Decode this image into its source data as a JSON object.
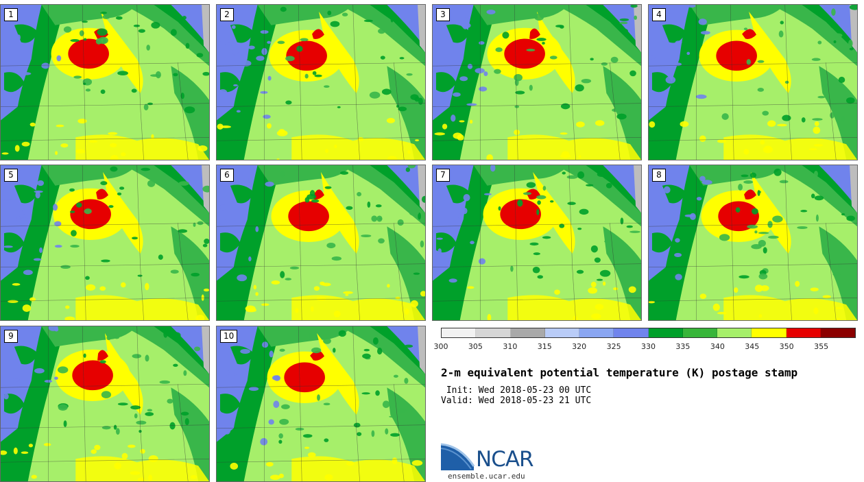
{
  "panels": [
    {
      "label": "1"
    },
    {
      "label": "2"
    },
    {
      "label": "3"
    },
    {
      "label": "4"
    },
    {
      "label": "5"
    },
    {
      "label": "6"
    },
    {
      "label": "7"
    },
    {
      "label": "8"
    },
    {
      "label": "9"
    },
    {
      "label": "10"
    }
  ],
  "colorbar": {
    "ticks": [
      "300",
      "305",
      "310",
      "315",
      "320",
      "325",
      "330",
      "335",
      "340",
      "345",
      "350",
      "355"
    ],
    "colors": [
      "#f2f2f2",
      "#d6d6d6",
      "#a9a9a9",
      "#b9ccf7",
      "#8aa6f2",
      "#7084ec",
      "#00a02a",
      "#38b53a",
      "#a6ef6a",
      "#ffff00",
      "#e60000",
      "#8b0000"
    ]
  },
  "title": "2-m equivalent potential temperature (K) postage stamp",
  "init": " Init: Wed 2018-05-23 00 UTC",
  "valid": "Valid: Wed 2018-05-23 21 UTC",
  "logo": {
    "name": "NCAR",
    "site": "ensemble.ucar.edu"
  },
  "map_colors": {
    "blue": "#7083ec",
    "dark_green": "#00a02a",
    "mid_green": "#39b64a",
    "light_green": "#a6ef6a",
    "yellow": "#ffff00",
    "red": "#e60000",
    "gray": "#bdbdbd"
  }
}
